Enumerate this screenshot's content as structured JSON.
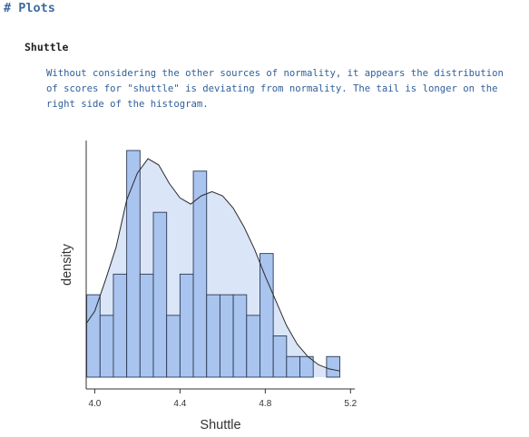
{
  "heading": "# Plots",
  "section": {
    "title": "Shuttle",
    "description_lines": [
      "Without considering the other sources of normality, it appears the distribution",
      "of scores for \"shuttle\" is deviating from normality. The tail is longer on the",
      "right side of the histogram."
    ]
  },
  "chart_data": {
    "type": "bar",
    "title": "",
    "xlabel": "Shuttle",
    "ylabel": "density",
    "xlim": [
      3.96,
      5.22
    ],
    "x_ticks": [
      4.0,
      4.4,
      4.8,
      5.2
    ],
    "x_tick_labels": [
      "4.0",
      "4.4",
      "4.8",
      "5.2"
    ],
    "y_ticks_shown": false,
    "bin_width": 0.0625,
    "bins_start": 3.9625,
    "series": [
      {
        "type": "histogram",
        "values": [
          4,
          3,
          5,
          11,
          5,
          8,
          3,
          5,
          10,
          4,
          4,
          4,
          3,
          6,
          2,
          1,
          1,
          0,
          1
        ],
        "color": "#a9c4ee",
        "edge_color": "#2c3a55"
      },
      {
        "type": "density",
        "x": [
          3.96,
          4.0,
          4.05,
          4.1,
          4.15,
          4.2,
          4.25,
          4.3,
          4.35,
          4.4,
          4.45,
          4.5,
          4.55,
          4.6,
          4.65,
          4.7,
          4.75,
          4.8,
          4.85,
          4.9,
          4.95,
          5.0,
          5.05,
          5.1,
          5.15
        ],
        "values": [
          2.6,
          3.2,
          4.7,
          6.3,
          8.6,
          9.9,
          10.6,
          10.3,
          9.4,
          8.7,
          8.4,
          8.8,
          9.0,
          8.8,
          8.2,
          7.3,
          6.2,
          4.9,
          3.7,
          2.5,
          1.6,
          1.0,
          0.6,
          0.4,
          0.3
        ],
        "fill": "#dae5f8",
        "line_color": "#2a2a2a"
      }
    ],
    "ymax": 11,
    "grid": false,
    "legend": "none"
  }
}
